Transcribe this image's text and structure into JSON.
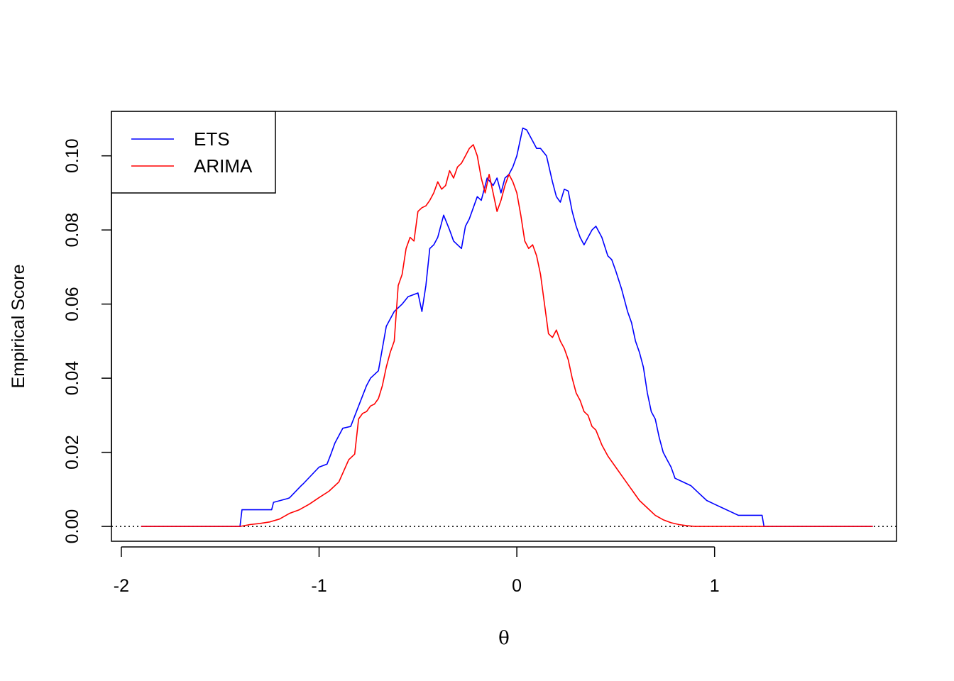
{
  "chart_data": {
    "type": "line",
    "xlabel": "θ",
    "ylabel": "Empirical Score",
    "xlim": [
      -2.05,
      1.92
    ],
    "ylim": [
      -0.004,
      0.112
    ],
    "x_ticks": [
      -2,
      -1,
      0,
      1
    ],
    "x_tick_labels": [
      "-2",
      "-1",
      "0",
      "1"
    ],
    "y_ticks": [
      0.0,
      0.02,
      0.04,
      0.06,
      0.08,
      0.1
    ],
    "y_tick_labels": [
      "0.00",
      "0.02",
      "0.04",
      "0.06",
      "0.08",
      "0.10"
    ],
    "reference_line": {
      "y": 0,
      "style": "dotted",
      "color": "#000000"
    },
    "legend": {
      "position": "top-left",
      "entries": [
        "ETS",
        "ARIMA"
      ]
    },
    "series": [
      {
        "name": "ETS",
        "color": "#0000ff",
        "x": [
          -1.9,
          -1.5,
          -1.4,
          -1.39,
          -1.24,
          -1.23,
          -1.16,
          -1.15,
          -1.09,
          -1.08,
          -1.0,
          -0.96,
          -0.94,
          -0.92,
          -0.88,
          -0.84,
          -0.8,
          -0.76,
          -0.74,
          -0.72,
          -0.7,
          -0.66,
          -0.62,
          -0.6,
          -0.58,
          -0.55,
          -0.5,
          -0.48,
          -0.46,
          -0.44,
          -0.42,
          -0.4,
          -0.37,
          -0.34,
          -0.32,
          -0.3,
          -0.28,
          -0.26,
          -0.24,
          -0.22,
          -0.2,
          -0.18,
          -0.15,
          -0.12,
          -0.1,
          -0.08,
          -0.06,
          -0.04,
          -0.02,
          0.0,
          0.02,
          0.03,
          0.05,
          0.08,
          0.1,
          0.12,
          0.15,
          0.18,
          0.2,
          0.22,
          0.24,
          0.26,
          0.28,
          0.3,
          0.32,
          0.34,
          0.36,
          0.38,
          0.4,
          0.43,
          0.46,
          0.48,
          0.5,
          0.53,
          0.56,
          0.58,
          0.6,
          0.62,
          0.64,
          0.66,
          0.68,
          0.7,
          0.72,
          0.74,
          0.76,
          0.78,
          0.8,
          0.84,
          0.88,
          0.92,
          0.96,
          1.0,
          1.04,
          1.08,
          1.12,
          1.16,
          1.2,
          1.24,
          1.25,
          1.3,
          1.8
        ],
        "values": [
          0.0,
          0.0,
          0.0,
          0.0045,
          0.0045,
          0.0065,
          0.0075,
          0.0077,
          0.011,
          0.0115,
          0.016,
          0.0168,
          0.0195,
          0.0225,
          0.0265,
          0.027,
          0.0325,
          0.038,
          0.04,
          0.041,
          0.042,
          0.054,
          0.058,
          0.059,
          0.06,
          0.062,
          0.063,
          0.058,
          0.065,
          0.075,
          0.076,
          0.078,
          0.084,
          0.08,
          0.077,
          0.076,
          0.075,
          0.081,
          0.083,
          0.086,
          0.089,
          0.088,
          0.094,
          0.092,
          0.094,
          0.09,
          0.094,
          0.095,
          0.097,
          0.1,
          0.105,
          0.1075,
          0.107,
          0.104,
          0.102,
          0.102,
          0.1,
          0.093,
          0.089,
          0.0875,
          0.091,
          0.0905,
          0.085,
          0.081,
          0.078,
          0.076,
          0.078,
          0.08,
          0.081,
          0.078,
          0.073,
          0.072,
          0.069,
          0.064,
          0.058,
          0.055,
          0.05,
          0.047,
          0.043,
          0.036,
          0.031,
          0.029,
          0.024,
          0.02,
          0.018,
          0.016,
          0.013,
          0.012,
          0.011,
          0.009,
          0.007,
          0.006,
          0.005,
          0.004,
          0.003,
          0.003,
          0.003,
          0.003,
          0.0,
          0.0,
          0.0
        ]
      },
      {
        "name": "ARIMA",
        "color": "#ff0000",
        "x": [
          -1.9,
          -1.5,
          -1.4,
          -1.35,
          -1.3,
          -1.25,
          -1.2,
          -1.15,
          -1.1,
          -1.05,
          -1.0,
          -0.95,
          -0.9,
          -0.85,
          -0.82,
          -0.8,
          -0.78,
          -0.76,
          -0.74,
          -0.72,
          -0.7,
          -0.68,
          -0.66,
          -0.64,
          -0.62,
          -0.6,
          -0.58,
          -0.56,
          -0.54,
          -0.52,
          -0.5,
          -0.48,
          -0.46,
          -0.44,
          -0.42,
          -0.4,
          -0.38,
          -0.36,
          -0.34,
          -0.32,
          -0.3,
          -0.28,
          -0.26,
          -0.24,
          -0.22,
          -0.2,
          -0.18,
          -0.16,
          -0.14,
          -0.12,
          -0.1,
          -0.08,
          -0.06,
          -0.04,
          -0.02,
          0.0,
          0.02,
          0.04,
          0.06,
          0.08,
          0.1,
          0.12,
          0.14,
          0.16,
          0.18,
          0.2,
          0.22,
          0.24,
          0.26,
          0.28,
          0.3,
          0.32,
          0.34,
          0.36,
          0.38,
          0.4,
          0.43,
          0.46,
          0.5,
          0.54,
          0.58,
          0.62,
          0.66,
          0.7,
          0.74,
          0.78,
          0.82,
          0.86,
          0.9,
          0.95,
          1.0,
          1.05,
          1.1,
          1.15,
          1.2,
          1.25,
          1.3,
          1.8
        ],
        "values": [
          0.0,
          0.0,
          0.0,
          0.0005,
          0.0008,
          0.0012,
          0.002,
          0.0035,
          0.0045,
          0.006,
          0.0078,
          0.0095,
          0.012,
          0.018,
          0.0195,
          0.029,
          0.0305,
          0.031,
          0.0325,
          0.033,
          0.0345,
          0.038,
          0.043,
          0.047,
          0.05,
          0.065,
          0.068,
          0.075,
          0.078,
          0.077,
          0.085,
          0.086,
          0.0865,
          0.088,
          0.09,
          0.093,
          0.091,
          0.092,
          0.096,
          0.094,
          0.097,
          0.098,
          0.1,
          0.102,
          0.103,
          0.1,
          0.094,
          0.09,
          0.095,
          0.09,
          0.085,
          0.088,
          0.092,
          0.095,
          0.093,
          0.09,
          0.084,
          0.077,
          0.075,
          0.076,
          0.073,
          0.068,
          0.06,
          0.052,
          0.051,
          0.053,
          0.05,
          0.048,
          0.045,
          0.04,
          0.036,
          0.034,
          0.031,
          0.03,
          0.027,
          0.026,
          0.022,
          0.019,
          0.016,
          0.013,
          0.01,
          0.007,
          0.005,
          0.003,
          0.0018,
          0.001,
          0.0005,
          0.0002,
          0.0,
          0.0,
          0.0,
          0.0,
          0.0,
          0.0,
          0.0,
          0.0,
          0.0,
          0.0
        ]
      }
    ]
  }
}
